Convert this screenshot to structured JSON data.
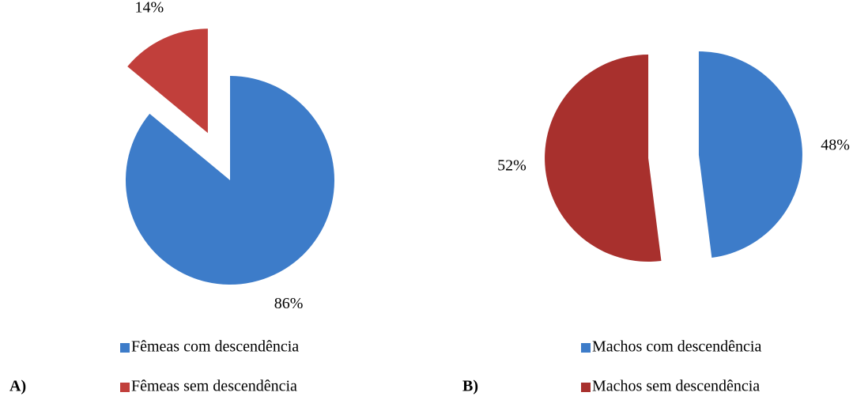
{
  "chart_data": [
    {
      "type": "pie",
      "label": "A)",
      "categories": [
        "Fêmeas com descendência",
        "Fêmeas sem descendência"
      ],
      "values": [
        86,
        14
      ],
      "value_labels": [
        "86%",
        "14%"
      ],
      "colors": [
        "#3d7cc9",
        "#c13f3b"
      ],
      "explode": [
        false,
        true
      ]
    },
    {
      "type": "pie",
      "label": "B)",
      "categories": [
        "Machos com descendência",
        "Machos sem descendência"
      ],
      "values": [
        48,
        52
      ],
      "value_labels": [
        "48%",
        "52%"
      ],
      "colors": [
        "#3d7cc9",
        "#a8302d"
      ],
      "explode": [
        true,
        true
      ]
    }
  ]
}
